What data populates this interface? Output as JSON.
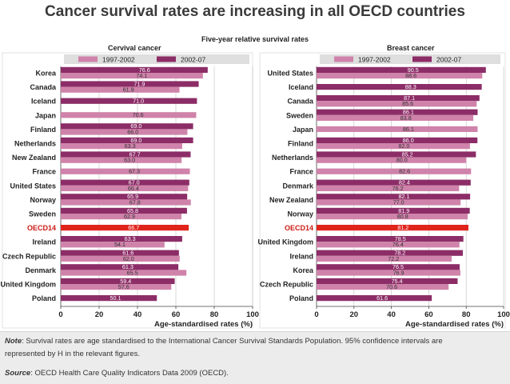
{
  "title": "Cancer survival rates are increasing in all OECD countries",
  "subtitle": "Five-year relative survival rates",
  "note_label": "Note",
  "note_text": ": Survival rates are age standardised to the International Cancer Survival Standards Population. 95% confidence intervals are represented by H in the relevant figures.",
  "source_label": "Source",
  "source_text": ": OECD Health Care Quality Indicators Data 2009 (OECD).",
  "colors": {
    "p1": "#cf83aa",
    "p2": "#8c2d67",
    "oecd": "#e0241c",
    "legend_bg": "#dedede"
  },
  "chart_data": [
    {
      "type": "bar",
      "orientation": "horizontal",
      "title": "Cervival cancer",
      "xlabel": "Age-standardised rates (%)",
      "xlim": [
        0,
        100
      ],
      "xticks": [
        0,
        20,
        40,
        60,
        80,
        100
      ],
      "legend": [
        "1997-2002",
        "2002-07"
      ],
      "legend_position": "top",
      "categories": [
        "Korea",
        "Canada",
        "Iceland",
        "Japan",
        "Finland",
        "Netherlands",
        "New Zealand",
        "France",
        "United States",
        "Norway",
        "Sweden",
        "OECD14",
        "Ireland",
        "Czech Republic",
        "Denmark",
        "United Kingdom",
        "Poland"
      ],
      "highlight": "OECD14",
      "series": [
        {
          "name": "1997-2002",
          "values": [
            74.1,
            61.9,
            null,
            70.6,
            66.0,
            63.3,
            63.0,
            67.3,
            66.4,
            67.8,
            62.9,
            null,
            54.1,
            62.0,
            65.5,
            57.6,
            null
          ]
        },
        {
          "name": "2002-07",
          "values": [
            76.6,
            71.9,
            71.0,
            null,
            69.0,
            69.0,
            67.7,
            null,
            67.0,
            65.9,
            65.8,
            66.7,
            63.3,
            61.6,
            61.3,
            59.4,
            50.1
          ]
        }
      ]
    },
    {
      "type": "bar",
      "orientation": "horizontal",
      "title": "Breast cancer",
      "xlabel": "Age-standardised rates (%)",
      "xlim": [
        0,
        100
      ],
      "xticks": [
        0,
        20,
        40,
        60,
        80,
        100
      ],
      "legend": [
        "1997-2002",
        "2002-07"
      ],
      "legend_position": "top",
      "categories": [
        "United States",
        "Iceland",
        "Canada",
        "Sweden",
        "Japan",
        "Finland",
        "Netherlands",
        "France",
        "Denmark",
        "New Zealand",
        "Norway",
        "OECD14",
        "United Kingdom",
        "Ireland",
        "Korea",
        "Czech Republic",
        "Poland"
      ],
      "highlight": "OECD14",
      "series": [
        {
          "name": "1997-2002",
          "values": [
            88.6,
            null,
            85.6,
            83.8,
            86.1,
            82.0,
            80.0,
            82.6,
            76.2,
            77.0,
            80.8,
            null,
            76.4,
            72.2,
            76.9,
            70.6,
            null
          ]
        },
        {
          "name": "2002-07",
          "values": [
            90.5,
            88.3,
            87.1,
            86.1,
            null,
            86.0,
            85.2,
            null,
            82.4,
            82.1,
            81.9,
            81.2,
            78.5,
            78.2,
            76.5,
            75.4,
            61.6
          ]
        }
      ]
    }
  ]
}
